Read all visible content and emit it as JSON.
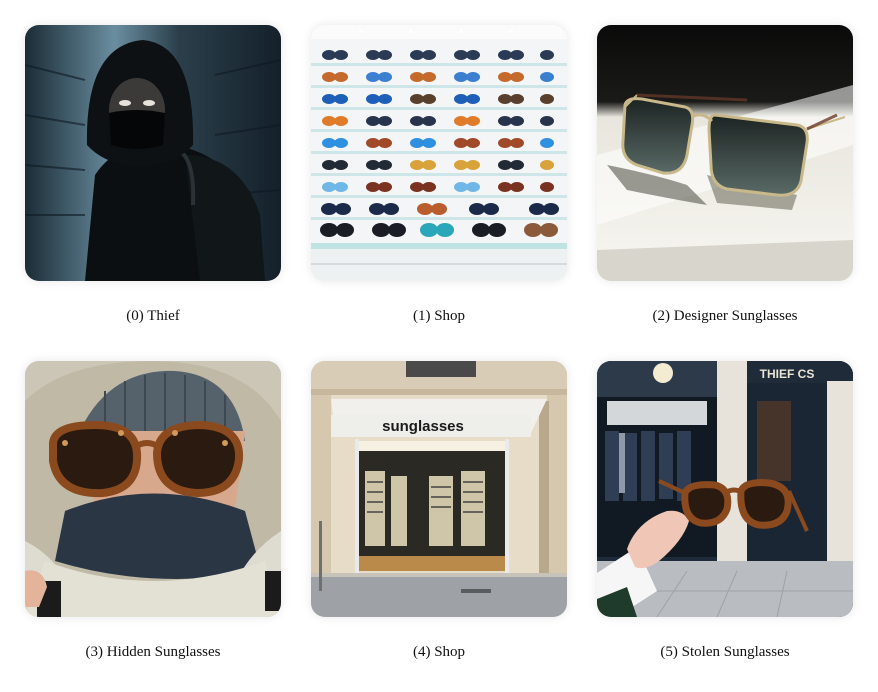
{
  "panels": [
    {
      "index": "(0)",
      "label": "Thief",
      "caption": "(0) Thief"
    },
    {
      "index": "(1)",
      "label": "Shop",
      "caption": "(1) Shop"
    },
    {
      "index": "(2)",
      "label": "Designer Sunglasses",
      "caption": "(2) Designer Sunglasses"
    },
    {
      "index": "(3)",
      "label": "Hidden Sunglasses",
      "caption": "(3) Hidden Sunglasses"
    },
    {
      "index": "(4)",
      "label": "Shop",
      "caption": "(4) Shop",
      "sign_text": "sunglasses"
    },
    {
      "index": "(5)",
      "label": "Stolen Sunglasses",
      "caption": "(5) Stolen Sunglasses",
      "sign_text": "THIEF CS"
    }
  ]
}
